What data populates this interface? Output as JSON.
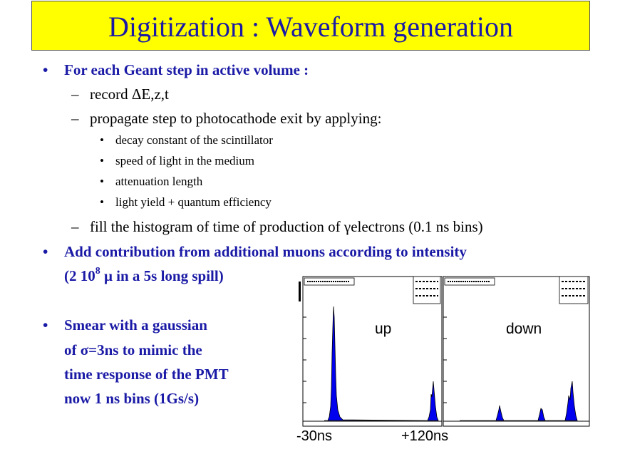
{
  "title": "Digitization : Waveform generation",
  "bullets": {
    "b1": {
      "marker": "•",
      "text": "For each Geant step in active volume :"
    },
    "b1a": {
      "marker": "–",
      "text": "record ΔE,z,t"
    },
    "b1b": {
      "marker": "–",
      "text": "propagate step to photocathode exit by applying:"
    },
    "b1b_items": [
      "decay constant of the scintillator",
      "speed of light in the medium",
      "attenuation length",
      "light yield + quantum efficiency"
    ],
    "b1b_marker": "•",
    "b1c": {
      "marker": "–",
      "text": "fill the histogram of time of production of γelectrons (0.1 ns bins)"
    },
    "b2": {
      "marker": "•",
      "line1": "Add contribution from additional muons according to intensity",
      "line2_pre": "(2 10",
      "line2_sup": "8",
      "line2_post": " μ in a 5s long spill)"
    },
    "b3": {
      "marker": "•",
      "lines": [
        "Smear with a gaussian",
        "of σ=3ns to mimic the",
        "time response of the PMT",
        "now 1 ns bins (1Gs/s)"
      ]
    }
  },
  "figure": {
    "label_up": "up",
    "label_down": "down",
    "label_left": "-30ns",
    "label_right": "+120ns",
    "colors": {
      "fill": "#0000ee",
      "axis": "#000000"
    }
  }
}
